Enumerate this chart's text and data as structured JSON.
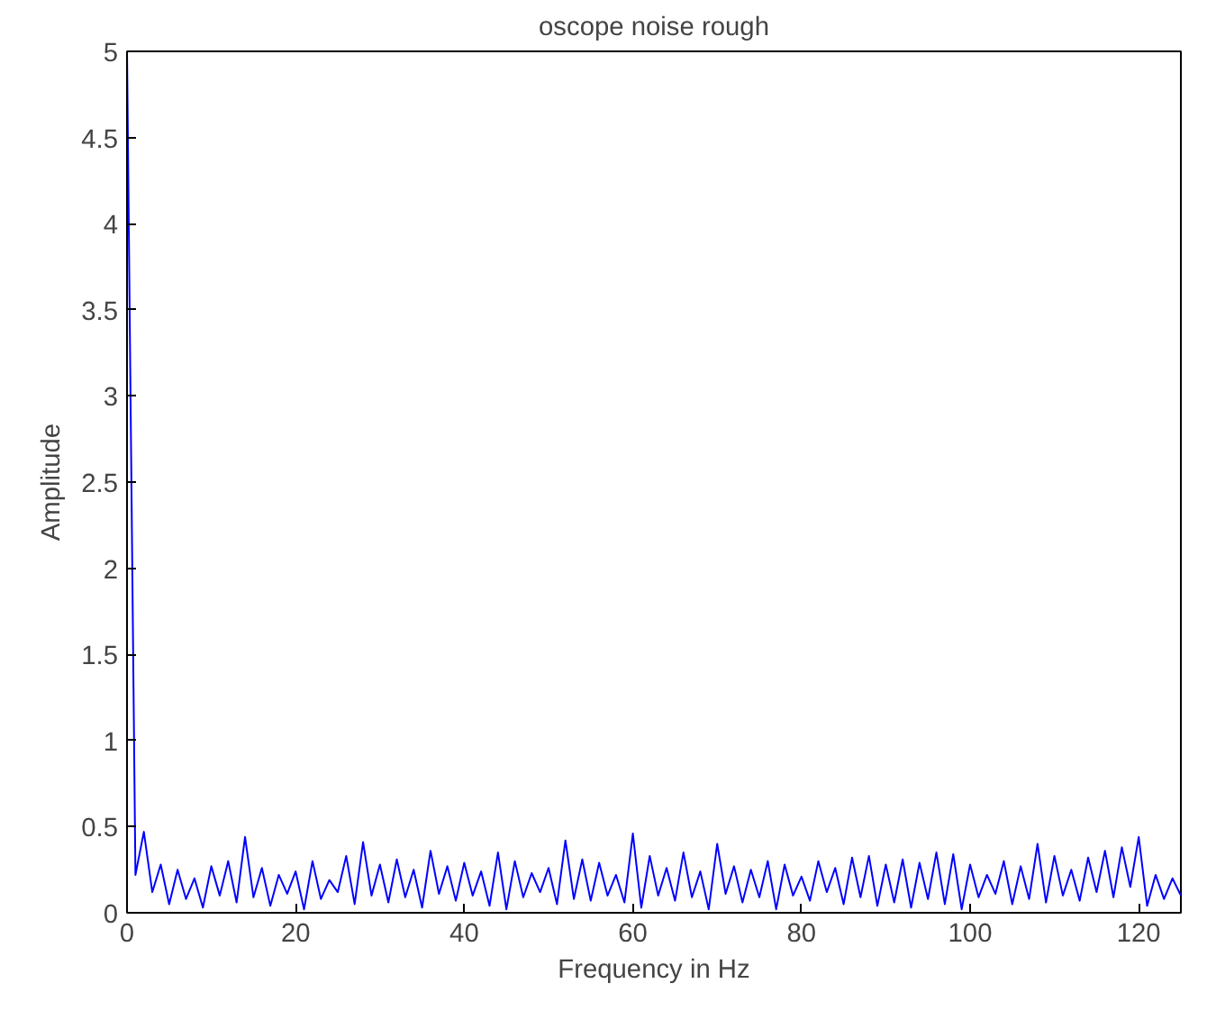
{
  "chart_data": {
    "type": "line",
    "title": "oscope noise rough",
    "xlabel": "Frequency in Hz",
    "ylabel": "Amplitude",
    "xlim": [
      0,
      125
    ],
    "xticks": [
      0,
      20,
      40,
      60,
      80,
      100,
      120
    ],
    "ylim": [
      0,
      5
    ],
    "yticks": [
      0,
      {
        "value": 0.5,
        "label": "0.5"
      },
      1,
      {
        "value": 1.5,
        "label": "1.5"
      },
      2,
      {
        "value": 2.5,
        "label": "2.5"
      },
      3,
      {
        "value": 3.5,
        "label": "3.5"
      },
      4,
      {
        "value": 4.5,
        "label": "4.5"
      },
      5
    ],
    "grid": false,
    "line_style": "solid",
    "x": [
      0,
      1,
      2,
      3,
      4,
      5,
      6,
      7,
      8,
      9,
      10,
      11,
      12,
      13,
      14,
      15,
      16,
      17,
      18,
      19,
      20,
      21,
      22,
      23,
      24,
      25,
      26,
      27,
      28,
      29,
      30,
      31,
      32,
      33,
      34,
      35,
      36,
      37,
      38,
      39,
      40,
      41,
      42,
      43,
      44,
      45,
      46,
      47,
      48,
      49,
      50,
      51,
      52,
      53,
      54,
      55,
      56,
      57,
      58,
      59,
      60,
      61,
      62,
      63,
      64,
      65,
      66,
      67,
      68,
      69,
      70,
      71,
      72,
      73,
      74,
      75,
      76,
      77,
      78,
      79,
      80,
      81,
      82,
      83,
      84,
      85,
      86,
      87,
      88,
      89,
      90,
      91,
      92,
      93,
      94,
      95,
      96,
      97,
      98,
      99,
      100,
      101,
      102,
      103,
      104,
      105,
      106,
      107,
      108,
      109,
      110,
      111,
      112,
      113,
      114,
      115,
      116,
      117,
      118,
      119,
      120,
      121,
      122,
      123,
      124,
      125
    ],
    "series": [
      {
        "color": "#0000ff",
        "values": [
          5.0,
          0.22,
          0.47,
          0.12,
          0.28,
          0.05,
          0.25,
          0.08,
          0.2,
          0.03,
          0.27,
          0.1,
          0.3,
          0.06,
          0.44,
          0.09,
          0.26,
          0.04,
          0.22,
          0.11,
          0.24,
          0.02,
          0.3,
          0.08,
          0.19,
          0.12,
          0.33,
          0.05,
          0.41,
          0.1,
          0.28,
          0.06,
          0.31,
          0.09,
          0.25,
          0.03,
          0.36,
          0.11,
          0.27,
          0.07,
          0.29,
          0.1,
          0.24,
          0.04,
          0.35,
          0.02,
          0.3,
          0.09,
          0.23,
          0.12,
          0.26,
          0.05,
          0.42,
          0.08,
          0.31,
          0.07,
          0.29,
          0.1,
          0.22,
          0.06,
          0.46,
          0.03,
          0.33,
          0.1,
          0.26,
          0.07,
          0.35,
          0.09,
          0.24,
          0.02,
          0.4,
          0.11,
          0.27,
          0.06,
          0.25,
          0.09,
          0.3,
          0.02,
          0.28,
          0.1,
          0.21,
          0.07,
          0.3,
          0.12,
          0.26,
          0.05,
          0.32,
          0.09,
          0.33,
          0.04,
          0.28,
          0.06,
          0.31,
          0.03,
          0.29,
          0.08,
          0.35,
          0.05,
          0.34,
          0.02,
          0.28,
          0.09,
          0.22,
          0.11,
          0.3,
          0.05,
          0.27,
          0.08,
          0.4,
          0.06,
          0.33,
          0.1,
          0.25,
          0.07,
          0.32,
          0.12,
          0.36,
          0.09,
          0.38,
          0.15,
          0.44,
          0.04,
          0.22,
          0.08,
          0.2,
          0.1
        ]
      }
    ]
  }
}
